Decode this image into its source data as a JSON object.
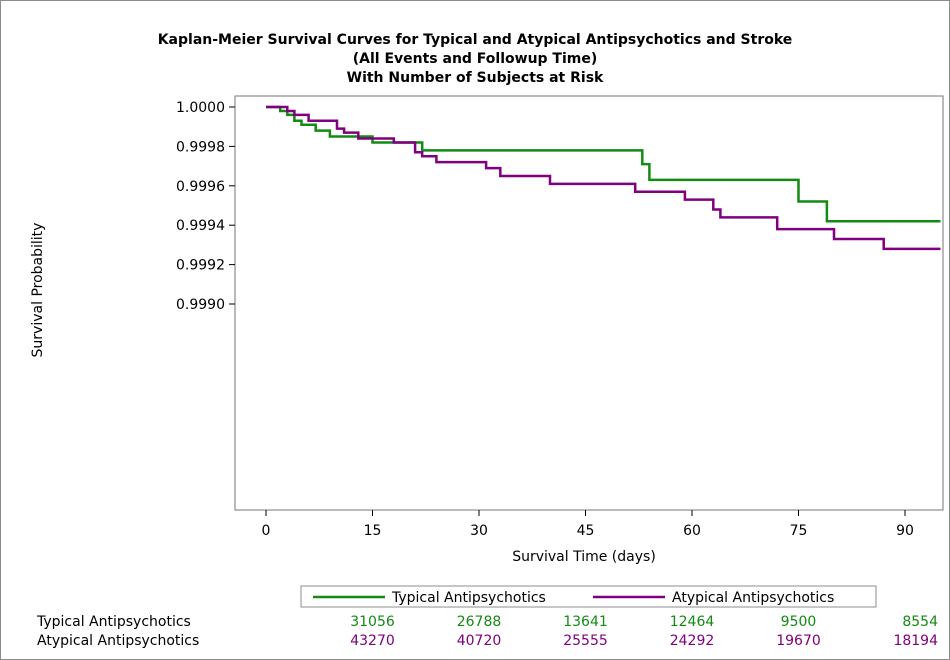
{
  "chart_data": {
    "type": "line",
    "title": [
      "Kaplan-Meier Survival Curves for Typical and Atypical Antipsychotics and Stroke",
      "(All Events and Followup Time)",
      "With Number of Subjects at Risk"
    ],
    "xlabel": "Survival Time (days)",
    "ylabel": "Survival Probability",
    "xlim": [
      -5,
      95
    ],
    "ylim": [
      0.99898,
      1.00002
    ],
    "x_ticks": [
      0,
      15,
      30,
      45,
      60,
      75,
      90
    ],
    "y_ticks": [
      0.999,
      0.9992,
      0.9994,
      0.9996,
      0.9998,
      1.0
    ],
    "y_tick_labels": [
      "0.9990",
      "0.9992",
      "0.9994",
      "0.9996",
      "0.9998",
      "1.0000"
    ],
    "step": true,
    "grid": false,
    "legend_position": "bottom",
    "series": [
      {
        "name": "Typical Antipsychotics",
        "color": "#138a13",
        "points": [
          [
            0,
            1.0
          ],
          [
            2,
            0.99998
          ],
          [
            3,
            0.99996
          ],
          [
            4,
            0.99993
          ],
          [
            5,
            0.99991
          ],
          [
            7,
            0.99988
          ],
          [
            9,
            0.99985
          ],
          [
            15,
            0.99982
          ],
          [
            22,
            0.99978
          ],
          [
            53,
            0.99971
          ],
          [
            54,
            0.99963
          ],
          [
            75,
            0.99952
          ],
          [
            79,
            0.99942
          ],
          [
            95,
            0.99942
          ]
        ]
      },
      {
        "name": "Atypical Antipsychotics",
        "color": "#800080",
        "points": [
          [
            0,
            1.0
          ],
          [
            3,
            0.99998
          ],
          [
            4,
            0.99996
          ],
          [
            6,
            0.99993
          ],
          [
            10,
            0.99989
          ],
          [
            11,
            0.99987
          ],
          [
            13,
            0.99984
          ],
          [
            18,
            0.99982
          ],
          [
            21,
            0.99977
          ],
          [
            22,
            0.99975
          ],
          [
            24,
            0.99972
          ],
          [
            31,
            0.99969
          ],
          [
            33,
            0.99965
          ],
          [
            40,
            0.99961
          ],
          [
            52,
            0.99957
          ],
          [
            59,
            0.99953
          ],
          [
            63,
            0.99948
          ],
          [
            64,
            0.99944
          ],
          [
            72,
            0.99938
          ],
          [
            80,
            0.99933
          ],
          [
            87,
            0.99928
          ],
          [
            95,
            0.99928
          ]
        ]
      }
    ],
    "risk_table": {
      "times": [
        15,
        30,
        45,
        60,
        75,
        90
      ],
      "rows": [
        {
          "label": "Typical Antipsychotics",
          "color": "#138a13",
          "values": [
            "31056",
            "26788",
            "13641",
            "12464",
            "9500",
            "8554"
          ]
        },
        {
          "label": "Atypical Antipsychotics",
          "color": "#800080",
          "values": [
            "43270",
            "40720",
            "25555",
            "24292",
            "19670",
            "18194"
          ]
        }
      ]
    }
  }
}
